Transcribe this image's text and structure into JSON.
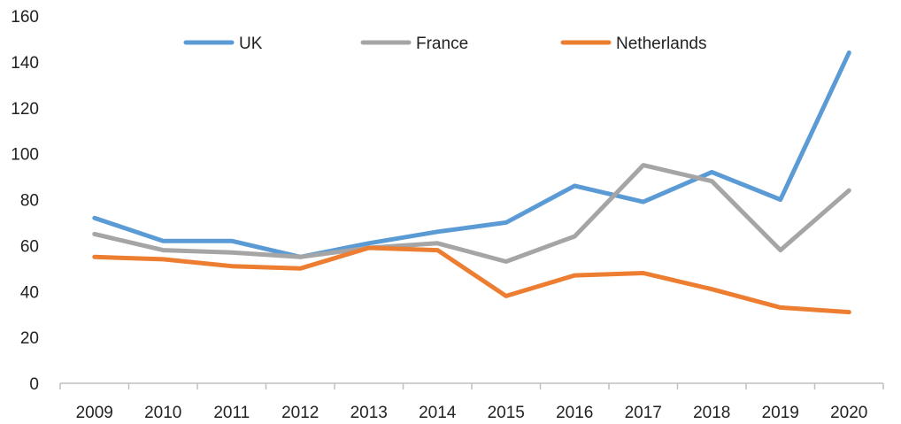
{
  "chart_data": {
    "type": "line",
    "title": "",
    "xlabel": "",
    "ylabel": "",
    "x": [
      "2009",
      "2010",
      "2011",
      "2012",
      "2013",
      "2014",
      "2015",
      "2016",
      "2017",
      "2018",
      "2019",
      "2020"
    ],
    "ylim": [
      0,
      160
    ],
    "yticks": [
      0,
      20,
      40,
      60,
      80,
      100,
      120,
      140,
      160
    ],
    "grid": false,
    "legend_position": "top",
    "series": [
      {
        "name": "UK",
        "color": "#5b9bd5",
        "values": [
          72,
          62,
          62,
          55,
          61,
          66,
          70,
          86,
          79,
          92,
          80,
          144
        ]
      },
      {
        "name": "France",
        "color": "#a5a5a5",
        "values": [
          65,
          58,
          57,
          55,
          59,
          61,
          53,
          64,
          95,
          88,
          58,
          84
        ]
      },
      {
        "name": "Netherlands",
        "color": "#ed7d31",
        "values": [
          55,
          54,
          51,
          50,
          59,
          58,
          38,
          47,
          48,
          41,
          33,
          31
        ]
      }
    ]
  }
}
